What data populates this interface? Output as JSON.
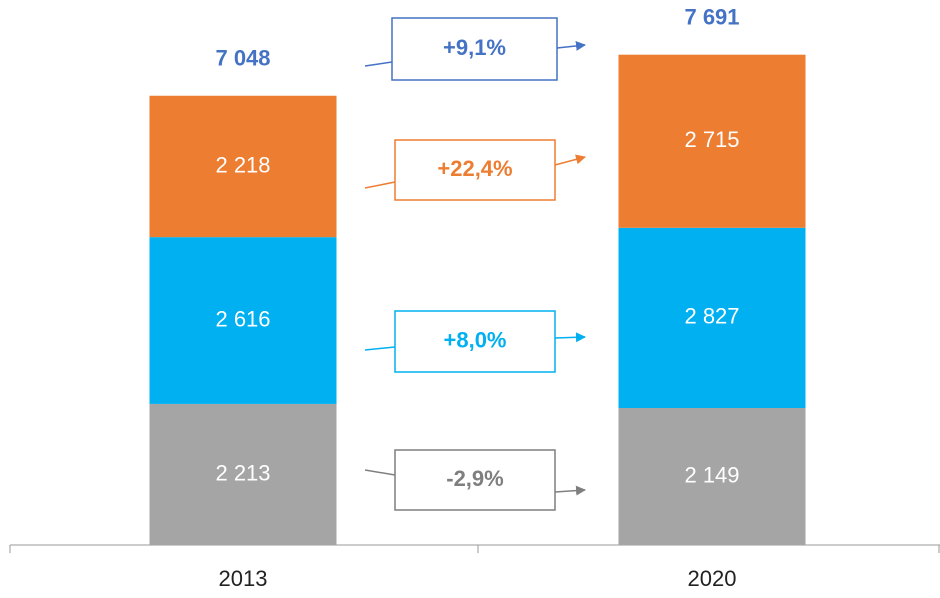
{
  "chart_data": {
    "type": "stacked_bar",
    "categories": [
      "2013",
      "2020"
    ],
    "series": [
      {
        "name": "Gray",
        "color": "#a5a5a5",
        "values": [
          2213,
          2149
        ],
        "value_labels": [
          "2 213",
          "2 149"
        ]
      },
      {
        "name": "Blue",
        "color": "#00b0f0",
        "values": [
          2616,
          2827
        ],
        "value_labels": [
          "2 616",
          "2 827"
        ]
      },
      {
        "name": "Orange",
        "color": "#ed7d31",
        "values": [
          2218,
          2715
        ],
        "value_labels": [
          "2 218",
          "2 715"
        ]
      }
    ],
    "totals": {
      "color": "#4472c4",
      "values": [
        7048,
        7691
      ],
      "value_labels": [
        "7 048",
        "7 691"
      ]
    },
    "annotations": [
      {
        "text": "+9,1%",
        "color": "#4472c4"
      },
      {
        "text": "+22,4%",
        "color": "#ed7d31"
      },
      {
        "text": "+8,0%",
        "color": "#00b0f0"
      },
      {
        "text": "-2,9%",
        "color": "#7f7f7f"
      }
    ],
    "ylim": [
      0,
      8000
    ]
  }
}
